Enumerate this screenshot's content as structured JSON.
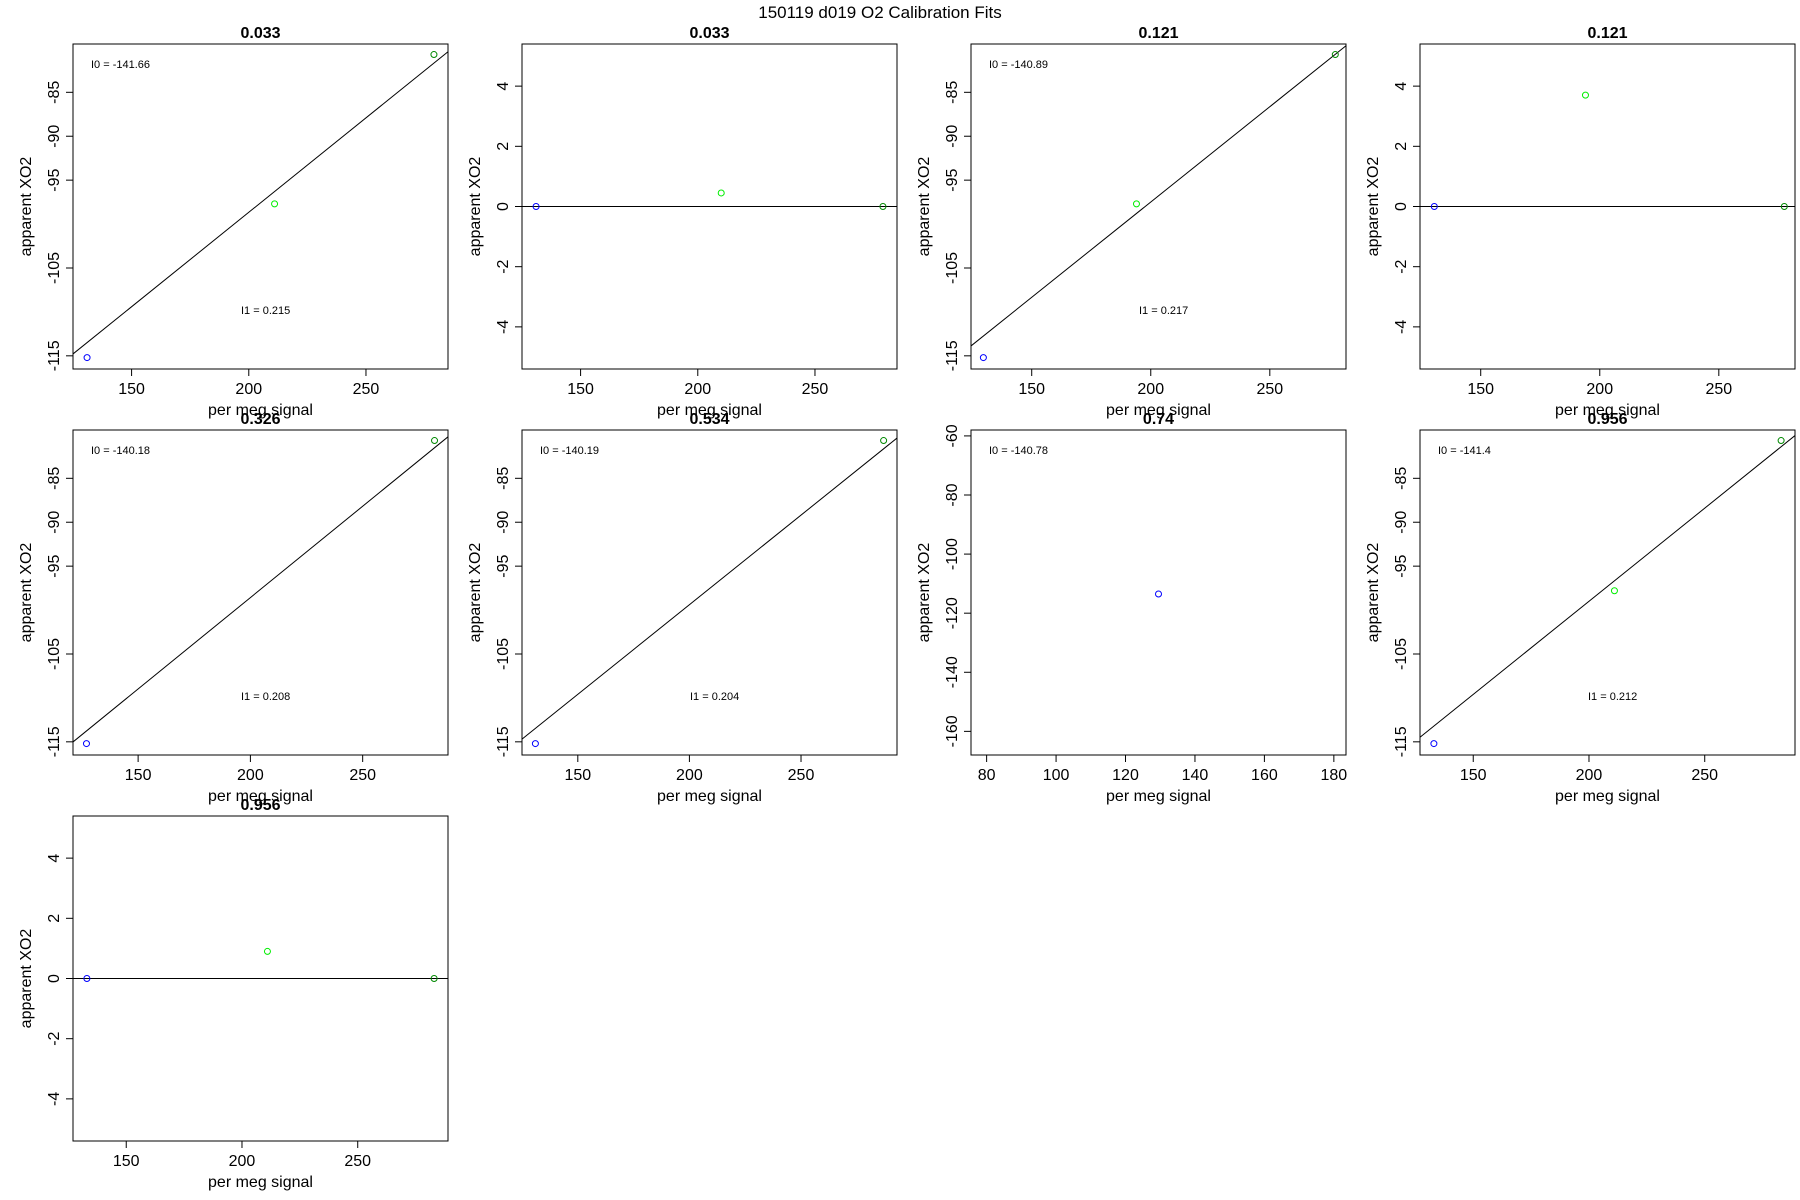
{
  "figure_title": "150119   d019   O2 Calibration Fits",
  "colors": {
    "frame": "#000000",
    "fit_line": "#000000",
    "blue": "#0000ff",
    "green": "#00ee00",
    "darkgreen": "#008800"
  },
  "chart_data": [
    {
      "type": "scatter",
      "title": "0.033",
      "xlabel": "per meg signal",
      "ylabel": "apparent XO2",
      "xlim": [
        125,
        285
      ],
      "ylim": [
        -116.5,
        -79.5
      ],
      "xticks": [
        150,
        200,
        250
      ],
      "yticks": [
        -115,
        -105,
        -95,
        -90,
        -85
      ],
      "points": [
        {
          "x": 131,
          "y": -115.2,
          "color": "blue"
        },
        {
          "x": 211,
          "y": -97.7,
          "color": "green"
        },
        {
          "x": 279,
          "y": -80.7,
          "color": "darkgreen"
        }
      ],
      "fit_line": {
        "intercept": -141.66,
        "slope": 0.215
      },
      "annotations": [
        {
          "text": "I0 =  -141.66",
          "pos": "top-left"
        },
        {
          "text": "I1 =  0.215",
          "pos": "lower-middle"
        }
      ]
    },
    {
      "type": "scatter",
      "title": "0.033",
      "xlabel": "per meg signal",
      "ylabel": "apparent XO2",
      "xlim": [
        125,
        285
      ],
      "ylim": [
        -5.4,
        5.4
      ],
      "xticks": [
        150,
        200,
        250
      ],
      "yticks": [
        -4,
        -2,
        0,
        2,
        4
      ],
      "points": [
        {
          "x": 131,
          "y": 0,
          "color": "blue"
        },
        {
          "x": 210,
          "y": 0.45,
          "color": "green"
        },
        {
          "x": 279,
          "y": 0,
          "color": "darkgreen"
        }
      ],
      "hline": 0,
      "annotations": []
    },
    {
      "type": "scatter",
      "title": "0.121",
      "xlabel": "per meg signal",
      "ylabel": "apparent XO2",
      "xlim": [
        124.5,
        282
      ],
      "ylim": [
        -116.5,
        -79.5
      ],
      "xticks": [
        150,
        200,
        250
      ],
      "yticks": [
        -115,
        -105,
        -95,
        -90,
        -85
      ],
      "points": [
        {
          "x": 129.7,
          "y": -115.2,
          "color": "blue"
        },
        {
          "x": 194,
          "y": -97.7,
          "color": "green"
        },
        {
          "x": 277.5,
          "y": -80.7,
          "color": "darkgreen"
        }
      ],
      "fit_line": {
        "intercept": -140.89,
        "slope": 0.217
      },
      "annotations": [
        {
          "text": "I0 =  -140.89",
          "pos": "top-left"
        },
        {
          "text": "I1 =  0.217",
          "pos": "lower-middle"
        }
      ]
    },
    {
      "type": "scatter",
      "title": "0.121",
      "xlabel": "per meg signal",
      "ylabel": "apparent XO2",
      "xlim": [
        124.5,
        282
      ],
      "ylim": [
        -5.4,
        5.4
      ],
      "xticks": [
        150,
        200,
        250
      ],
      "yticks": [
        -4,
        -2,
        0,
        2,
        4
      ],
      "points": [
        {
          "x": 130.5,
          "y": 0,
          "color": "blue"
        },
        {
          "x": 194,
          "y": 3.7,
          "color": "green"
        },
        {
          "x": 277.5,
          "y": 0,
          "color": "darkgreen"
        }
      ],
      "hline": 0,
      "annotations": []
    },
    {
      "type": "scatter",
      "title": "0.326",
      "xlabel": "per meg signal",
      "ylabel": "apparent XO2",
      "xlim": [
        121,
        288
      ],
      "ylim": [
        -116.5,
        -79.5
      ],
      "xticks": [
        150,
        200,
        250
      ],
      "yticks": [
        -115,
        -105,
        -95,
        -90,
        -85
      ],
      "points": [
        {
          "x": 127,
          "y": -115.2,
          "color": "blue"
        },
        {
          "x": 282,
          "y": -80.7,
          "color": "darkgreen"
        }
      ],
      "fit_line": {
        "intercept": -140.18,
        "slope": 0.208
      },
      "annotations": [
        {
          "text": "I0 =  -140.18",
          "pos": "top-left"
        },
        {
          "text": "I1 =  0.208",
          "pos": "lower-middle"
        }
      ]
    },
    {
      "type": "scatter",
      "title": "0.534",
      "xlabel": "per meg signal",
      "ylabel": "apparent XO2",
      "xlim": [
        125,
        293
      ],
      "ylim": [
        -116.5,
        -79.5
      ],
      "xticks": [
        150,
        200,
        250
      ],
      "yticks": [
        -115,
        -105,
        -95,
        -90,
        -85
      ],
      "points": [
        {
          "x": 131,
          "y": -115.2,
          "color": "blue"
        },
        {
          "x": 287,
          "y": -80.7,
          "color": "darkgreen"
        }
      ],
      "fit_line": {
        "intercept": -140.19,
        "slope": 0.204
      },
      "annotations": [
        {
          "text": "I0 =  -140.19",
          "pos": "top-left"
        },
        {
          "text": "I1 =  0.204",
          "pos": "lower-middle"
        }
      ]
    },
    {
      "type": "scatter",
      "title": "0.74",
      "xlabel": "per meg signal",
      "ylabel": "apparent XO2",
      "xlim": [
        75.5,
        183.5
      ],
      "ylim": [
        -168,
        -58
      ],
      "xticks": [
        80,
        100,
        120,
        140,
        160,
        180
      ],
      "yticks": [
        -160,
        -140,
        -120,
        -100,
        -80,
        -60
      ],
      "points": [
        {
          "x": 129.5,
          "y": -113.5,
          "color": "blue"
        }
      ],
      "annotations": [
        {
          "text": "I0 =  -140.78",
          "pos": "top-left"
        }
      ]
    },
    {
      "type": "scatter",
      "title": "0.956",
      "xlabel": "per meg signal",
      "ylabel": "apparent XO2",
      "xlim": [
        127,
        289
      ],
      "ylim": [
        -116.5,
        -79.5
      ],
      "xticks": [
        150,
        200,
        250
      ],
      "yticks": [
        -115,
        -105,
        -95,
        -90,
        -85
      ],
      "points": [
        {
          "x": 133,
          "y": -115.2,
          "color": "blue"
        },
        {
          "x": 211,
          "y": -97.8,
          "color": "green"
        },
        {
          "x": 283,
          "y": -80.7,
          "color": "darkgreen"
        }
      ],
      "fit_line": {
        "intercept": -141.4,
        "slope": 0.212
      },
      "annotations": [
        {
          "text": "I0 =  -141.4",
          "pos": "top-left"
        },
        {
          "text": "I1 =  0.212",
          "pos": "lower-middle"
        }
      ]
    },
    {
      "type": "scatter",
      "title": "0.956",
      "xlabel": "per meg signal",
      "ylabel": "apparent XO2",
      "xlim": [
        127,
        289
      ],
      "ylim": [
        -5.4,
        5.4
      ],
      "xticks": [
        150,
        200,
        250
      ],
      "yticks": [
        -4,
        -2,
        0,
        2,
        4
      ],
      "points": [
        {
          "x": 133,
          "y": 0,
          "color": "blue"
        },
        {
          "x": 211,
          "y": 0.9,
          "color": "green"
        },
        {
          "x": 283,
          "y": 0,
          "color": "darkgreen"
        }
      ],
      "hline": 0,
      "annotations": []
    }
  ]
}
